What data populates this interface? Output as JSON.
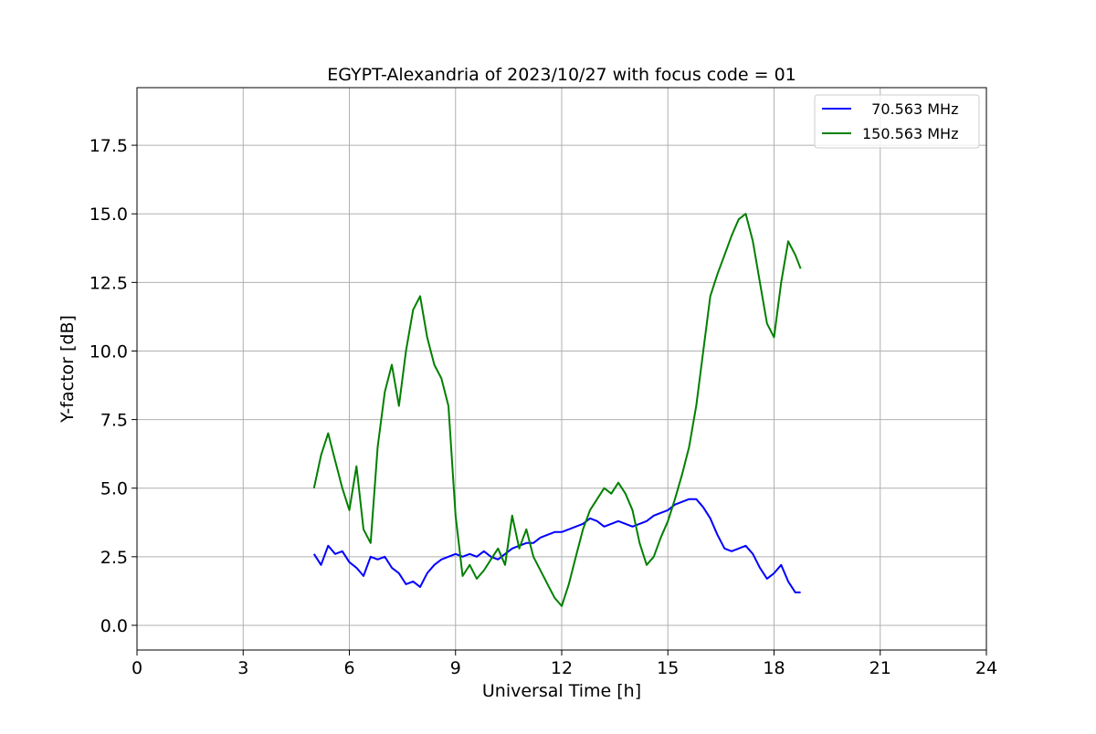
{
  "chart_data": {
    "type": "line",
    "title": "EGYPT-Alexandria of 2023/10/27 with focus code = 01",
    "xlabel": "Universal Time [h]",
    "ylabel": "Y-factor [dB]",
    "xlim": [
      0,
      24
    ],
    "ylim": [
      -0.9,
      19.6
    ],
    "xticks": [
      0,
      3,
      6,
      9,
      12,
      15,
      18,
      21,
      24
    ],
    "yticks": [
      0.0,
      2.5,
      5.0,
      7.5,
      10.0,
      12.5,
      15.0,
      17.5
    ],
    "ytick_labels": [
      "0.0",
      "2.5",
      "5.0",
      "7.5",
      "10.0",
      "12.5",
      "15.0",
      "17.5"
    ],
    "grid": true,
    "legend_position": "top-right",
    "series": [
      {
        "name": "  70.563 MHz",
        "color": "#0000ff",
        "x": [
          5.0,
          5.2,
          5.4,
          5.6,
          5.8,
          6.0,
          6.2,
          6.4,
          6.6,
          6.8,
          7.0,
          7.2,
          7.4,
          7.6,
          7.8,
          8.0,
          8.2,
          8.4,
          8.6,
          8.8,
          9.0,
          9.2,
          9.4,
          9.6,
          9.8,
          10.0,
          10.2,
          10.4,
          10.6,
          10.8,
          11.0,
          11.2,
          11.4,
          11.6,
          11.8,
          12.0,
          12.2,
          12.4,
          12.6,
          12.8,
          13.0,
          13.2,
          13.4,
          13.6,
          13.8,
          14.0,
          14.2,
          14.4,
          14.6,
          14.8,
          15.0,
          15.2,
          15.4,
          15.6,
          15.8,
          16.0,
          16.2,
          16.4,
          16.6,
          16.8,
          17.0,
          17.2,
          17.4,
          17.6,
          17.8,
          18.0,
          18.2,
          18.4,
          18.6,
          18.75
        ],
        "y": [
          2.6,
          2.2,
          2.9,
          2.6,
          2.7,
          2.3,
          2.1,
          1.8,
          2.5,
          2.4,
          2.5,
          2.1,
          1.9,
          1.5,
          1.6,
          1.4,
          1.9,
          2.2,
          2.4,
          2.5,
          2.6,
          2.5,
          2.6,
          2.5,
          2.7,
          2.5,
          2.4,
          2.6,
          2.8,
          2.9,
          3.0,
          3.0,
          3.2,
          3.3,
          3.4,
          3.4,
          3.5,
          3.6,
          3.7,
          3.9,
          3.8,
          3.6,
          3.7,
          3.8,
          3.7,
          3.6,
          3.7,
          3.8,
          4.0,
          4.1,
          4.2,
          4.4,
          4.5,
          4.6,
          4.6,
          4.3,
          3.9,
          3.3,
          2.8,
          2.7,
          2.8,
          2.9,
          2.6,
          2.1,
          1.7,
          1.9,
          2.2,
          1.6,
          1.2,
          1.2
        ]
      },
      {
        "name": "150.563 MHz",
        "color": "#008000",
        "x": [
          5.0,
          5.2,
          5.4,
          5.6,
          5.8,
          6.0,
          6.2,
          6.4,
          6.6,
          6.8,
          7.0,
          7.2,
          7.4,
          7.6,
          7.8,
          8.0,
          8.2,
          8.4,
          8.6,
          8.8,
          9.0,
          9.2,
          9.4,
          9.6,
          9.8,
          10.0,
          10.2,
          10.4,
          10.6,
          10.8,
          11.0,
          11.2,
          11.4,
          11.6,
          11.8,
          12.0,
          12.2,
          12.4,
          12.6,
          12.8,
          13.0,
          13.2,
          13.4,
          13.6,
          13.8,
          14.0,
          14.2,
          14.4,
          14.6,
          14.8,
          15.0,
          15.2,
          15.4,
          15.6,
          15.8,
          16.0,
          16.2,
          16.4,
          16.6,
          16.8,
          17.0,
          17.2,
          17.4,
          17.6,
          17.8,
          18.0,
          18.2,
          18.4,
          18.6,
          18.75
        ],
        "y": [
          5.0,
          6.2,
          7.0,
          6.0,
          5.0,
          4.2,
          5.8,
          3.5,
          3.0,
          6.5,
          8.5,
          9.5,
          8.0,
          10.0,
          11.5,
          12.0,
          10.5,
          9.5,
          9.0,
          8.0,
          4.0,
          1.8,
          2.2,
          1.7,
          2.0,
          2.4,
          2.8,
          2.2,
          4.0,
          2.8,
          3.5,
          2.5,
          2.0,
          1.5,
          1.0,
          0.7,
          1.5,
          2.5,
          3.5,
          4.2,
          4.6,
          5.0,
          4.8,
          5.2,
          4.8,
          4.2,
          3.0,
          2.2,
          2.5,
          3.2,
          3.8,
          4.6,
          5.5,
          6.5,
          8.0,
          10.0,
          12.0,
          12.8,
          13.5,
          14.2,
          14.8,
          15.0,
          14.0,
          12.5,
          11.0,
          10.5,
          12.5,
          14.0,
          13.5,
          13.0
        ]
      }
    ]
  }
}
